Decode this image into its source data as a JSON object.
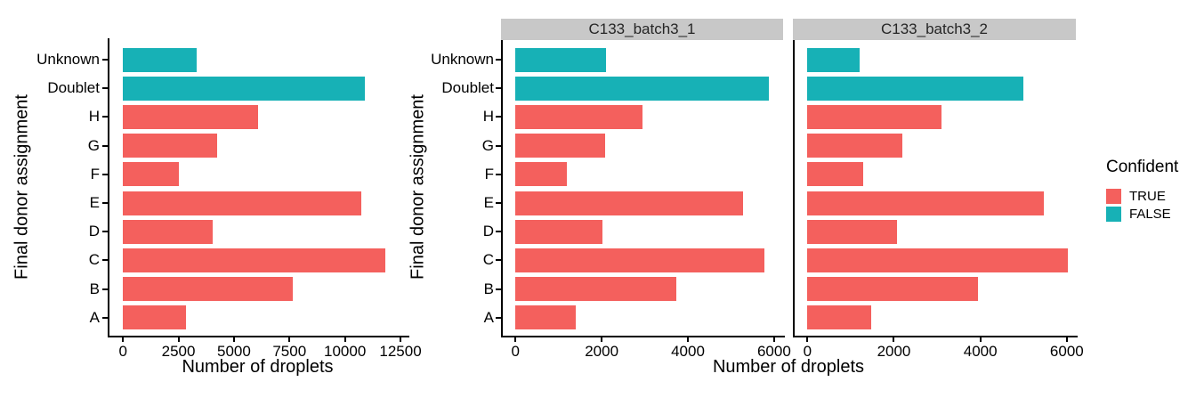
{
  "figure": {
    "background": "#ffffff",
    "axis_color": "#000000",
    "strip_bg": "#c8c8c8",
    "strip_text_color": "#262626"
  },
  "legend": {
    "title": "Confident",
    "position": "right",
    "items": [
      {
        "label": "TRUE",
        "color": "#f4605d"
      },
      {
        "label": "FALSE",
        "color": "#17b1b6"
      }
    ]
  },
  "chart_data": [
    {
      "type": "bar",
      "orientation": "horizontal",
      "facet": "",
      "xlabel": "Number of droplets",
      "ylabel": "Final donor assignment",
      "categories": [
        "Unknown",
        "Doublet",
        "H",
        "G",
        "F",
        "E",
        "D",
        "C",
        "B",
        "A"
      ],
      "values": [
        3325,
        10900,
        6090,
        4250,
        2500,
        10750,
        4060,
        11825,
        7650,
        2855
      ],
      "confident": [
        "FALSE",
        "FALSE",
        "TRUE",
        "TRUE",
        "TRUE",
        "TRUE",
        "TRUE",
        "TRUE",
        "TRUE",
        "TRUE"
      ],
      "xticks": [
        0,
        2500,
        5000,
        7500,
        10000,
        12500
      ],
      "xlim": [
        0,
        12900
      ],
      "grid": false,
      "legend_shown": false
    },
    {
      "type": "bar",
      "orientation": "horizontal",
      "facet": "C133_batch3_1",
      "xlabel": "Number of droplets",
      "ylabel": "Final donor assignment",
      "categories": [
        "Unknown",
        "Doublet",
        "H",
        "G",
        "F",
        "E",
        "D",
        "C",
        "B",
        "A"
      ],
      "values": [
        2100,
        5875,
        2950,
        2075,
        1200,
        5275,
        2025,
        5775,
        3725,
        1400
      ],
      "confident": [
        "FALSE",
        "FALSE",
        "TRUE",
        "TRUE",
        "TRUE",
        "TRUE",
        "TRUE",
        "TRUE",
        "TRUE",
        "TRUE"
      ],
      "xticks": [
        0,
        2000,
        4000,
        6000
      ],
      "xlim": [
        0,
        6250
      ],
      "grid": false,
      "legend_shown": true
    },
    {
      "type": "bar",
      "orientation": "horizontal",
      "facet": "C133_batch3_2",
      "xlabel": "Number of droplets",
      "ylabel": "Final donor assignment",
      "categories": [
        "Unknown",
        "Doublet",
        "H",
        "G",
        "F",
        "E",
        "D",
        "C",
        "B",
        "A"
      ],
      "values": [
        1200,
        5000,
        3100,
        2200,
        1300,
        5475,
        2080,
        6025,
        3940,
        1470
      ],
      "confident": [
        "FALSE",
        "FALSE",
        "TRUE",
        "TRUE",
        "TRUE",
        "TRUE",
        "TRUE",
        "TRUE",
        "TRUE",
        "TRUE"
      ],
      "xticks": [
        0,
        2000,
        4000,
        6000
      ],
      "xlim": [
        0,
        6250
      ],
      "grid": false,
      "legend_shown": true
    }
  ]
}
